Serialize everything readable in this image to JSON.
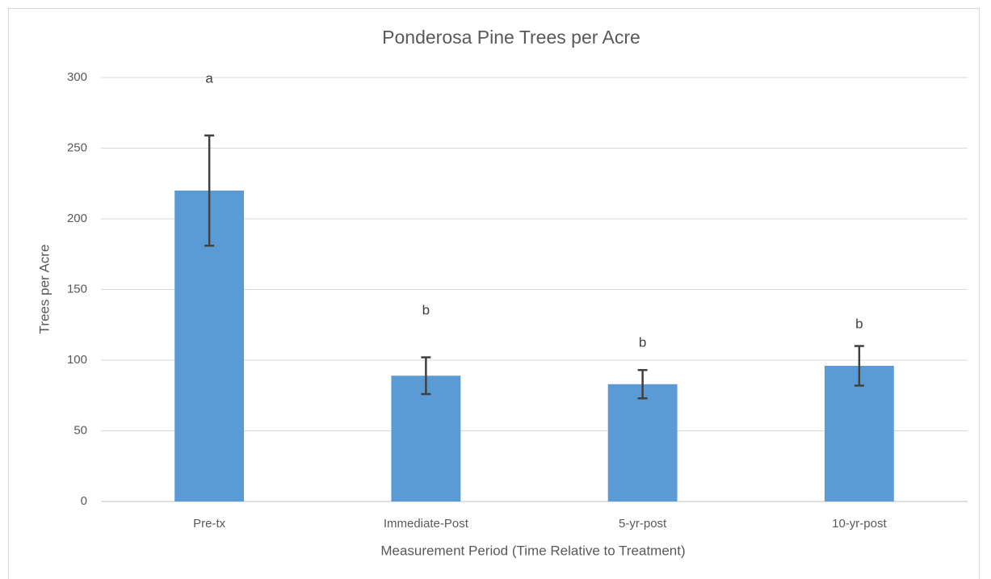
{
  "chart_data": {
    "type": "bar",
    "title": "Ponderosa Pine Trees per Acre",
    "xlabel": "Measurement Period (Time Relative to Treatment)",
    "ylabel": "Trees per Acre",
    "categories": [
      "Pre-tx",
      "Immediate-Post",
      "5-yr-post",
      "10-yr-post"
    ],
    "values": [
      220,
      89,
      83,
      96
    ],
    "errors": [
      39,
      13,
      10,
      14
    ],
    "annotations": [
      "a",
      "b",
      "b",
      "b"
    ],
    "color": "#5b9bd5",
    "error_color": "#404040",
    "ylim": [
      0,
      300
    ],
    "yticks": [
      0,
      50,
      100,
      150,
      200,
      250,
      300
    ],
    "grid": true
  }
}
